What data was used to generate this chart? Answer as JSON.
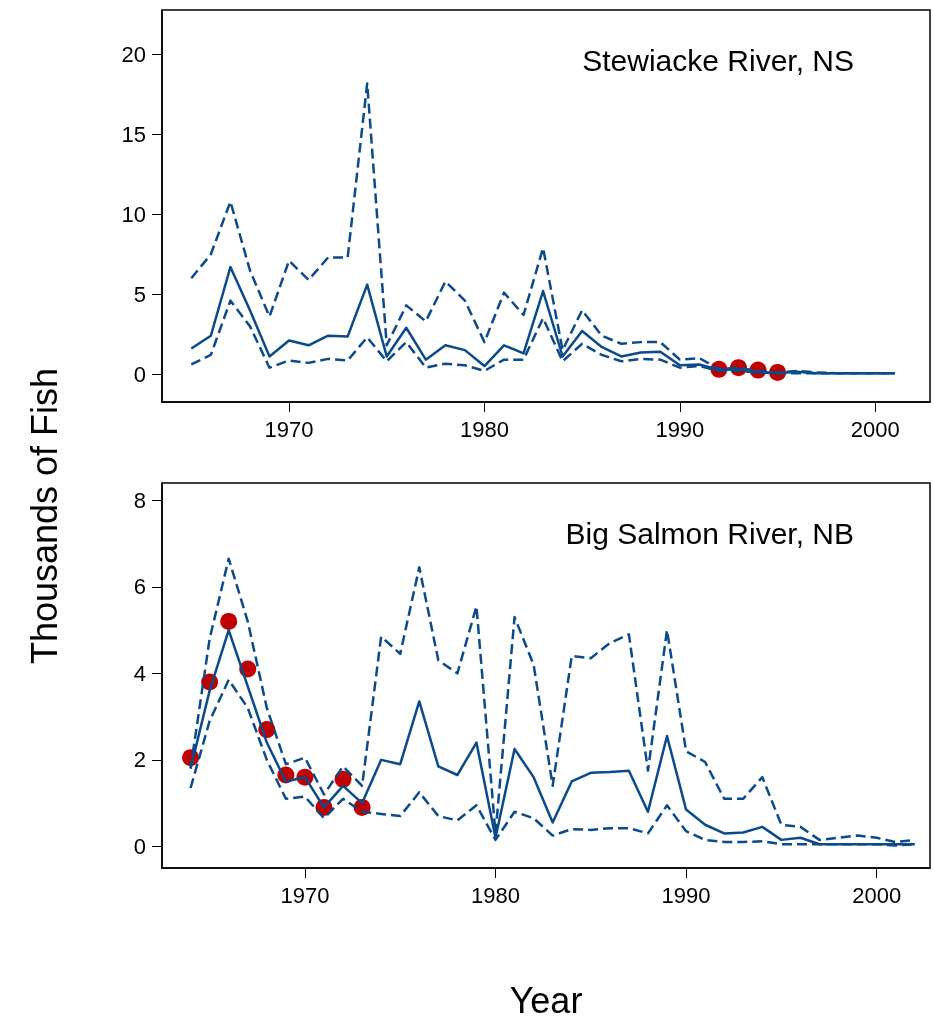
{
  "chart_data": [
    {
      "type": "line",
      "title": "Stewiacke River, NS",
      "ylabel": "Thousands of Fish",
      "xlim": [
        1963.5,
        2002.8
      ],
      "xticks": [
        1970,
        1980,
        1990,
        2000
      ],
      "ylim": [
        -1.75,
        22.8
      ],
      "yticks": [
        0,
        5,
        10,
        15,
        20
      ],
      "grid": false,
      "x": [
        1965,
        1966,
        1967,
        1968,
        1969,
        1970,
        1971,
        1972,
        1973,
        1974,
        1975,
        1976,
        1977,
        1978,
        1979,
        1980,
        1981,
        1982,
        1983,
        1984,
        1985,
        1986,
        1987,
        1988,
        1989,
        1990,
        1991,
        1992,
        1993,
        1994,
        1995,
        1996,
        1997,
        1998,
        1999,
        2000,
        2001
      ],
      "series": [
        {
          "color": "#0b4a8b",
          "line_style": "solid",
          "marker": "none",
          "values": [
            1.6,
            2.4,
            6.7,
            4.0,
            1.1,
            2.1,
            1.8,
            2.4,
            2.35,
            5.6,
            1.1,
            2.9,
            0.9,
            1.8,
            1.5,
            0.5,
            1.8,
            1.3,
            5.2,
            1.1,
            2.7,
            1.7,
            1.1,
            1.35,
            1.4,
            0.55,
            0.6,
            0.25,
            0.3,
            0.15,
            0.05,
            0.15,
            0.05,
            0.05,
            0.05,
            0.05,
            0.05
          ]
        },
        {
          "color": "#0b4a8b",
          "line_style": "dashed",
          "marker": "none",
          "values": [
            6.0,
            7.5,
            10.8,
            6.5,
            3.6,
            7.1,
            5.9,
            7.3,
            7.3,
            18.2,
            1.8,
            4.3,
            3.3,
            5.8,
            4.6,
            2.0,
            5.1,
            3.7,
            7.9,
            1.5,
            4.0,
            2.4,
            1.9,
            2.0,
            2.0,
            0.9,
            1.0,
            0.3,
            0.4,
            0.2,
            0.1,
            0.2,
            0.1,
            0.05,
            0.05,
            0.05,
            0.05
          ]
        },
        {
          "color": "#0b4a8b",
          "line_style": "dashed",
          "marker": "none",
          "values": [
            0.6,
            1.2,
            4.6,
            3.0,
            0.4,
            0.85,
            0.7,
            0.95,
            0.85,
            2.3,
            0.8,
            2.0,
            0.4,
            0.65,
            0.55,
            0.2,
            0.9,
            0.9,
            3.5,
            0.8,
            1.9,
            1.2,
            0.8,
            0.95,
            0.9,
            0.4,
            0.5,
            0.2,
            0.2,
            0.1,
            0.05,
            0.05,
            0.05,
            0.05,
            0.05,
            0.05,
            0.05
          ]
        },
        {
          "type": "scatter",
          "color": "#c00000",
          "marker": "circle",
          "x": [
            1992,
            1993,
            1994,
            1995
          ],
          "values": [
            0.3,
            0.4,
            0.25,
            0.1
          ]
        }
      ]
    },
    {
      "type": "line",
      "title": "Big Salmon River, NB",
      "xlabel": "Year",
      "xlim": [
        1962.5,
        2002.8
      ],
      "xticks": [
        1970,
        1980,
        1990,
        2000
      ],
      "ylim": [
        -0.5,
        8.4
      ],
      "yticks": [
        0,
        2,
        4,
        6,
        8
      ],
      "grid": false,
      "x": [
        1964,
        1965,
        1966,
        1967,
        1968,
        1969,
        1970,
        1971,
        1972,
        1973,
        1974,
        1975,
        1976,
        1977,
        1978,
        1979,
        1980,
        1981,
        1982,
        1983,
        1984,
        1985,
        1986,
        1987,
        1988,
        1989,
        1990,
        1991,
        1992,
        1993,
        1994,
        1995,
        1996,
        1997,
        1998,
        1999,
        2000,
        2001,
        2002
      ],
      "series": [
        {
          "color": "#0b4a8b",
          "line_style": "solid",
          "marker": "none",
          "values": [
            1.8,
            3.6,
            5.0,
            3.7,
            2.4,
            1.5,
            1.6,
            0.9,
            1.4,
            1.0,
            2.0,
            1.9,
            3.35,
            1.85,
            1.65,
            2.4,
            0.2,
            2.25,
            1.6,
            0.55,
            1.5,
            1.7,
            1.72,
            1.75,
            0.8,
            2.55,
            0.85,
            0.5,
            0.3,
            0.32,
            0.45,
            0.15,
            0.2,
            0.05,
            0.05,
            0.05,
            0.05,
            0.05,
            0.05
          ]
        },
        {
          "color": "#0b4a8b",
          "line_style": "dashed",
          "marker": "none",
          "values": [
            1.8,
            4.8,
            6.65,
            5.2,
            3.2,
            1.9,
            2.05,
            1.2,
            1.85,
            1.4,
            4.85,
            4.45,
            6.45,
            4.3,
            4.0,
            5.55,
            0.3,
            5.3,
            4.2,
            1.4,
            4.4,
            4.35,
            4.7,
            4.9,
            1.75,
            5.0,
            2.2,
            1.95,
            1.1,
            1.1,
            1.6,
            0.5,
            0.45,
            0.15,
            0.2,
            0.25,
            0.2,
            0.1,
            0.15
          ]
        },
        {
          "color": "#0b4a8b",
          "line_style": "dashed",
          "marker": "none",
          "values": [
            1.35,
            2.9,
            3.85,
            3.2,
            2.0,
            1.1,
            1.15,
            0.65,
            1.1,
            0.8,
            0.75,
            0.7,
            1.25,
            0.7,
            0.6,
            0.95,
            0.15,
            0.8,
            0.65,
            0.25,
            0.4,
            0.38,
            0.42,
            0.42,
            0.3,
            0.95,
            0.35,
            0.15,
            0.1,
            0.1,
            0.12,
            0.05,
            0.05,
            0.05,
            0.05,
            0.05,
            0.05,
            0.02,
            0.05
          ]
        },
        {
          "type": "scatter",
          "color": "#c00000",
          "marker": "circle",
          "x": [
            1964,
            1965,
            1966,
            1967,
            1968,
            1969,
            1970,
            1971,
            1972,
            1973
          ],
          "values": [
            2.05,
            3.8,
            5.2,
            4.1,
            2.7,
            1.65,
            1.6,
            0.9,
            1.55,
            0.9
          ]
        }
      ]
    }
  ]
}
